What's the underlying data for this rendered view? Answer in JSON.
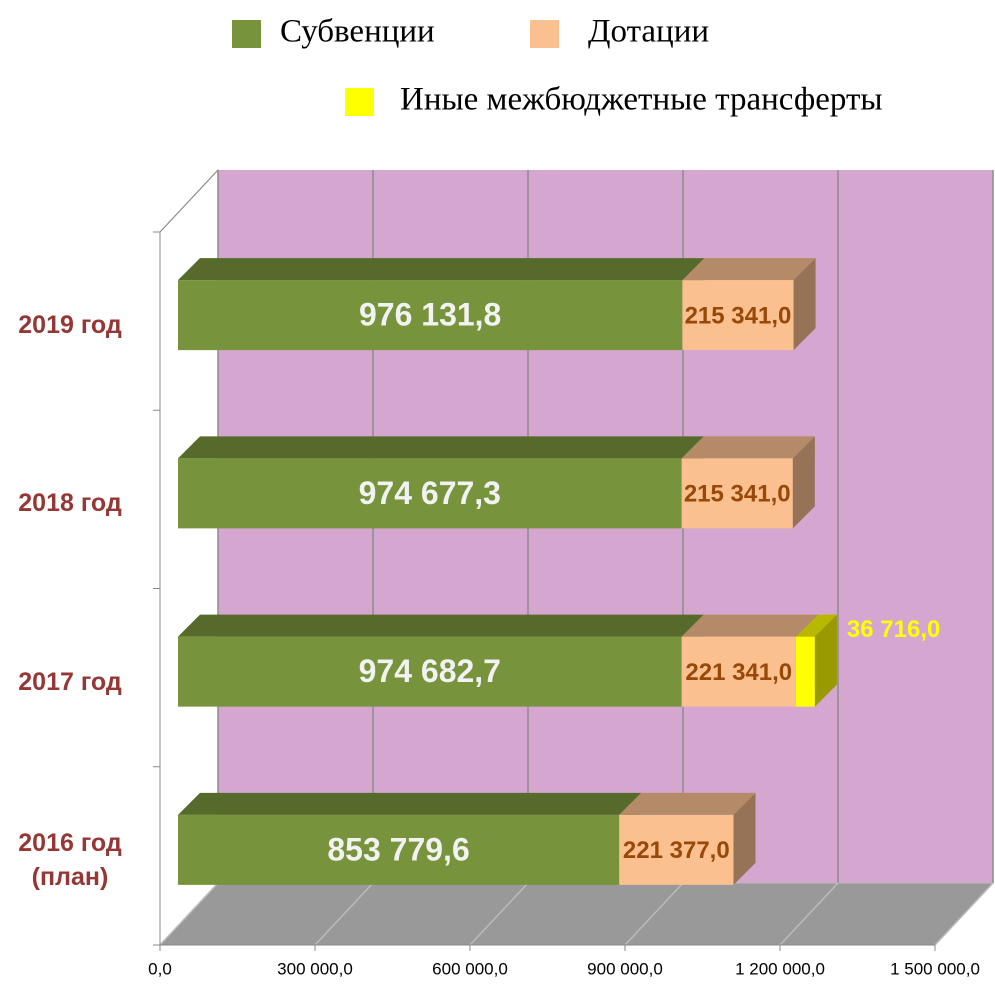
{
  "chart_data": {
    "type": "bar",
    "orientation": "horizontal",
    "stacked": true,
    "categories": [
      "2016 год (план)",
      "2017 год",
      "2018 год",
      "2019 год"
    ],
    "series": [
      {
        "name": "Субвенции",
        "color": "#77933c",
        "label_color": "#f2f2f2",
        "values": [
          853779.6,
          974682.7,
          974677.3,
          976131.8
        ],
        "value_labels": [
          "853 779,6",
          "974 682,7",
          "974 677,3",
          "976 131,8"
        ]
      },
      {
        "name": "Дотации",
        "color": "#fac090",
        "label_color": "#984807",
        "values": [
          221377.0,
          221341.0,
          215341.0,
          215341.0
        ],
        "value_labels": [
          "221 377,0",
          "221 341,0",
          "215 341,0",
          "215 341,0"
        ]
      },
      {
        "name": "Иные межбюджетные трансферты",
        "color": "#ffff00",
        "label_color": "#ffff00",
        "values": [
          null,
          36716.0,
          null,
          null
        ],
        "value_labels": [
          null,
          "36 716,0",
          null,
          null
        ]
      }
    ],
    "xlim": [
      0,
      1500000
    ],
    "xticks": [
      {
        "value": 0,
        "label": "0,0"
      },
      {
        "value": 300000,
        "label": "300 000,0"
      },
      {
        "value": 600000,
        "label": "600 000,0"
      },
      {
        "value": 900000,
        "label": "900 000,0"
      },
      {
        "value": 1200000,
        "label": "1 200 000,0"
      },
      {
        "value": 1500000,
        "label": "1 500 000,0"
      }
    ],
    "grid": true,
    "legend": "top"
  }
}
